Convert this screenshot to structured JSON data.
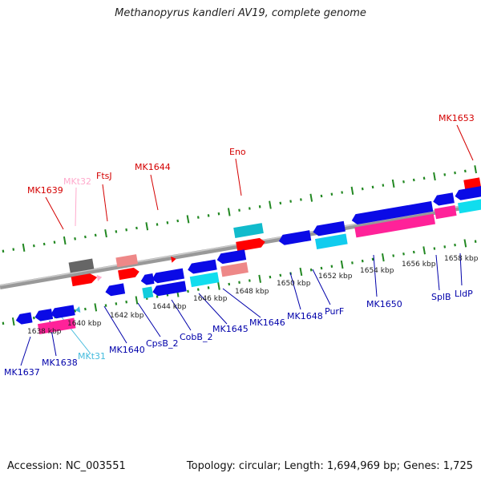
{
  "title": "Methanopyrus kandleri AV19, complete genome",
  "accession": "Accession: NC_003551",
  "summary": "Topology: circular; Length: 1,694,969 bp; Genes: 1,725",
  "colors": {
    "backbone": "#888888",
    "minor_tick": "#228822",
    "blue": "#0a0ae6",
    "red": "#ff0000",
    "cyan": "#11ccdd",
    "magenta": "#ff2299",
    "gray": "#666666",
    "salmon": "#ee8888",
    "pink": "#ffaacc",
    "label_top": "#d40000",
    "label_bottom": "#0000aa",
    "label_trna": "#44bbdd"
  },
  "scale_labels": [
    "1638 kbp",
    "1640 kbp",
    "1642 kbp",
    "1644 kbp",
    "1646 kbp",
    "1648 kbp",
    "1650 kbp",
    "1652 kbp",
    "1654 kbp",
    "1656 kbp",
    "1658 kbp"
  ],
  "top_labels": [
    "MK1639",
    "MKt32",
    "FtsJ",
    "MK1644",
    "Eno",
    "MK1653"
  ],
  "bottom_labels": [
    "MK1637",
    "MK1638",
    "MKt31",
    "MK1640",
    "CpsB_2",
    "CobB_2",
    "MK1645",
    "MK1646",
    "MK1648",
    "PurF",
    "MK1650",
    "SplB",
    "LldP"
  ]
}
